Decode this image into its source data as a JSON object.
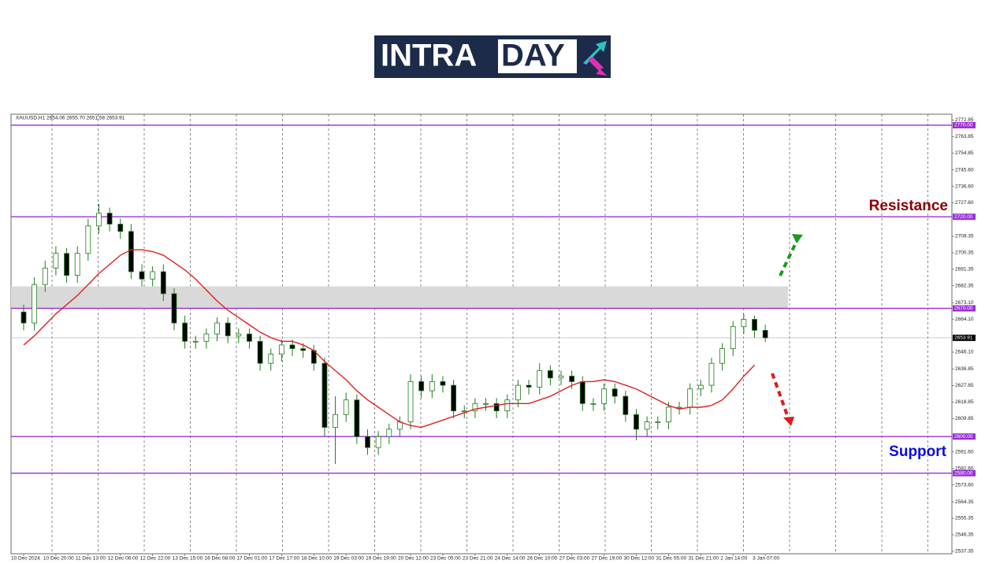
{
  "logo": {
    "left": "INTRA",
    "right": "DAY"
  },
  "chart_data": {
    "type": "candlestick",
    "title": "XAUUSD,H1  2654.06 2655.70 2651.58 2653.91",
    "categories": [
      "10 Dec 2024",
      null,
      null,
      "10 Dec 20:00",
      null,
      null,
      "11 Dec 13:00",
      null,
      null,
      "12 Dec 06:00",
      null,
      null,
      "12 Dec 22:00",
      null,
      null,
      "13 Dec 15:00",
      null,
      null,
      "16 Dec 08:00",
      null,
      null,
      "17 Dec 01:00",
      null,
      null,
      "17 Dec 17:00",
      null,
      null,
      "18 Dec 10:00",
      null,
      null,
      "19 Dec 03:00",
      null,
      null,
      "19 Dec 19:00",
      null,
      null,
      "20 Dec 12:00",
      null,
      null,
      "23 Dec 05:00",
      null,
      null,
      "23 Dec 21:00",
      null,
      null,
      "24 Dec 14:00",
      null,
      null,
      "26 Dec 10:00",
      null,
      null,
      "27 Dec 03:00",
      null,
      null,
      "27 Dec 19:00",
      null,
      null,
      "30 Dec 12:00",
      null,
      null,
      "31 Dec 05:00",
      null,
      null,
      "31 Dec 21:00",
      null,
      null,
      "2 Jan 14:00",
      null,
      null,
      "3 Jan 07:00"
    ],
    "open": [
      2668,
      2662,
      2683,
      2692,
      2700,
      2688,
      2700,
      2715,
      2722,
      2716,
      2712,
      2690,
      2686,
      2690,
      2678,
      2662,
      2652,
      2652,
      2656,
      2662,
      2655,
      2656,
      2652,
      2640,
      2645,
      2650,
      2648,
      2647,
      2640,
      2605,
      2612,
      2620,
      2600,
      2594,
      2600,
      2604,
      2608,
      2630,
      2625,
      2630,
      2628,
      2614,
      2614,
      2618,
      2618,
      2614,
      2620,
      2628,
      2627,
      2636,
      2632,
      2633,
      2630,
      2618,
      2618,
      2626,
      2622,
      2612,
      2604,
      2608,
      2608,
      2616,
      2616,
      2626,
      2628,
      2640,
      2648,
      2660,
      2664,
      2658
    ],
    "high": [
      2672,
      2687,
      2696,
      2704,
      2703,
      2704,
      2719,
      2727,
      2725,
      2719,
      2716,
      2694,
      2693,
      2694,
      2681,
      2666,
      2655,
      2659,
      2665,
      2665,
      2659,
      2659,
      2655,
      2648,
      2653,
      2653,
      2651,
      2650,
      2643,
      2622,
      2624,
      2623,
      2604,
      2603,
      2607,
      2611,
      2634,
      2633,
      2634,
      2633,
      2631,
      2617,
      2621,
      2621,
      2621,
      2623,
      2631,
      2631,
      2640,
      2639,
      2636,
      2636,
      2633,
      2621,
      2629,
      2629,
      2625,
      2615,
      2611,
      2611,
      2619,
      2619,
      2629,
      2631,
      2643,
      2651,
      2663,
      2667,
      2666,
      2661
    ],
    "low": [
      2658,
      2658,
      2679,
      2688,
      2684,
      2684,
      2696,
      2711,
      2712,
      2708,
      2686,
      2682,
      2682,
      2674,
      2658,
      2648,
      2648,
      2648,
      2652,
      2651,
      2651,
      2648,
      2636,
      2636,
      2641,
      2644,
      2643,
      2636,
      2600,
      2585,
      2608,
      2596,
      2590,
      2590,
      2596,
      2600,
      2604,
      2621,
      2621,
      2624,
      2610,
      2610,
      2610,
      2614,
      2610,
      2610,
      2616,
      2623,
      2623,
      2628,
      2628,
      2626,
      2614,
      2614,
      2614,
      2618,
      2608,
      2598,
      2600,
      2604,
      2604,
      2612,
      2612,
      2622,
      2624,
      2636,
      2644,
      2656,
      2654,
      2651.58
    ],
    "close": [
      2662,
      2683,
      2692,
      2700,
      2688,
      2700,
      2715,
      2722,
      2716,
      2712,
      2690,
      2686,
      2690,
      2678,
      2662,
      2652,
      2652,
      2656,
      2662,
      2655,
      2656,
      2652,
      2640,
      2645,
      2650,
      2648,
      2647,
      2640,
      2605,
      2612,
      2620,
      2600,
      2594,
      2600,
      2604,
      2608,
      2630,
      2625,
      2630,
      2628,
      2614,
      2614,
      2618,
      2618,
      2614,
      2620,
      2628,
      2627,
      2636,
      2632,
      2633,
      2630,
      2618,
      2618,
      2626,
      2622,
      2612,
      2604,
      2608,
      2608,
      2616,
      2616,
      2626,
      2628,
      2640,
      2648,
      2660,
      2664,
      2658,
      2653.91
    ],
    "up_color": "#1f7a1f",
    "down_color": "#000000",
    "moving_average": {
      "color": "#e02020",
      "values": [
        2650,
        2655,
        2661,
        2667,
        2672,
        2677,
        2683,
        2689,
        2694,
        2699,
        2702,
        2702,
        2701,
        2699,
        2695,
        2691,
        2686,
        2680,
        2674,
        2669,
        2665,
        2661,
        2657,
        2654,
        2652,
        2652,
        2650,
        2647,
        2641,
        2636,
        2631,
        2625,
        2620,
        2616,
        2612,
        2608,
        2606,
        2605,
        2607,
        2609,
        2611,
        2613,
        2615,
        2616,
        2617,
        2618,
        2618,
        2618,
        2620,
        2622,
        2625,
        2628,
        2630,
        2630,
        2631,
        2630,
        2628,
        2626,
        2623,
        2620,
        2617,
        2615,
        2616,
        2616,
        2617,
        2620,
        2626,
        2633,
        2639,
        null
      ]
    },
    "ylim": [
      2536,
      2776
    ],
    "yticks": [
      2772.85,
      2763.85,
      2754.85,
      {
        "value": 2745.6,
        "label": "2745.60"
      },
      {
        "value": 2736.6,
        "label": "2736.60"
      },
      {
        "value": 2727.6,
        "label": "2727.60"
      },
      2709.35,
      2700.35,
      2691.35,
      2682.35,
      {
        "value": 2673.1,
        "label": "2673.10"
      },
      {
        "value": 2664.1,
        "label": "2664.10"
      },
      {
        "value": 2646.1,
        "label": "2646.10"
      },
      2636.85,
      2627.85,
      2618.85,
      2609.85,
      {
        "value": 2591.6,
        "label": "2591.60"
      },
      {
        "value": 2582.6,
        "label": "2582.60"
      },
      {
        "value": 2573.6,
        "label": "2573.60"
      },
      2564.35,
      2555.35,
      2546.35,
      2537.35
    ],
    "levels": [
      {
        "value": 2770,
        "label": "2770.00"
      },
      {
        "value": 2720,
        "label": "2720.00"
      },
      {
        "value": 2670,
        "label": "2670.00"
      },
      {
        "value": 2600,
        "label": "2600.00"
      },
      {
        "value": 2580,
        "label": "2580.00"
      }
    ],
    "level_color": "#9b2fd6",
    "zone": [
      2670,
      2682
    ],
    "last_price": 2653.91,
    "annotations": [
      {
        "text": "Resistance",
        "color": "#8b0000"
      },
      {
        "text": "Support",
        "color": "#0a0ae6"
      }
    ]
  }
}
